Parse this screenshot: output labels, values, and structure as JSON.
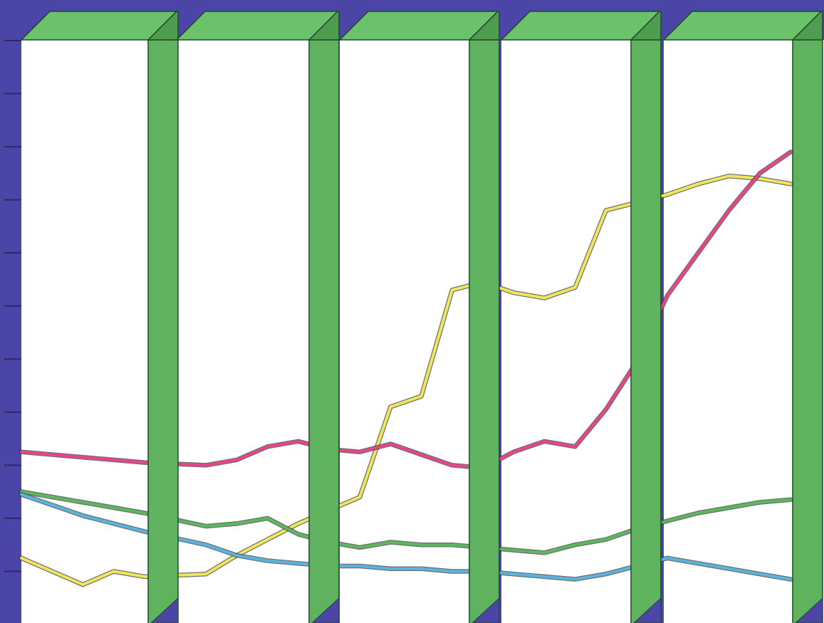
{
  "colors": {
    "background": "#4a45a6",
    "pillar_face": "#5fb35f",
    "pillar_top": "#6cc26a",
    "pillar_side": "#4f9d50",
    "pillar_edge": "#1e4a2a",
    "panel": "#ffffff",
    "tick": "#2b2a66"
  },
  "chart_data": {
    "type": "line",
    "title": "",
    "xlabel": "",
    "ylabel": "",
    "tick_labels": [],
    "x_range": [
      0,
      25
    ],
    "ylim": [
      0,
      11
    ],
    "y_ticks": [
      0,
      1,
      2,
      3,
      4,
      5,
      6,
      7,
      8,
      9,
      10,
      11
    ],
    "grid": false,
    "legend": "none",
    "x": [
      0,
      2,
      3,
      4,
      6,
      7,
      8,
      9,
      10,
      11,
      12,
      13,
      14,
      15,
      16,
      17,
      18,
      19,
      20,
      21,
      22,
      23,
      24,
      25
    ],
    "series": [
      {
        "color": "#f0e85a",
        "values": [
          1.25,
          0.75,
          1.0,
          0.9,
          0.95,
          1.3,
          1.6,
          1.9,
          2.15,
          2.4,
          4.1,
          4.3,
          6.3,
          6.45,
          6.25,
          6.15,
          6.35,
          7.8,
          7.95,
          8.1,
          8.3,
          8.45,
          8.4,
          8.3
        ]
      },
      {
        "color": "#e8448a",
        "values": [
          3.25,
          3.15,
          3.1,
          3.05,
          3.0,
          3.1,
          3.35,
          3.45,
          3.3,
          3.25,
          3.4,
          3.2,
          3.0,
          2.95,
          3.25,
          3.45,
          3.35,
          4.05,
          4.95,
          6.2,
          7.0,
          7.8,
          8.5,
          8.9
        ]
      },
      {
        "color": "#5bb85c",
        "values": [
          2.5,
          2.3,
          2.2,
          2.1,
          1.85,
          1.9,
          2.0,
          1.7,
          1.55,
          1.45,
          1.55,
          1.5,
          1.5,
          1.45,
          1.4,
          1.35,
          1.5,
          1.6,
          1.8,
          1.95,
          2.1,
          2.2,
          2.3,
          2.35
        ]
      },
      {
        "color": "#5ab4e2",
        "values": [
          2.45,
          2.05,
          1.9,
          1.75,
          1.5,
          1.3,
          1.2,
          1.15,
          1.1,
          1.1,
          1.05,
          1.05,
          1.0,
          1.0,
          0.95,
          0.9,
          0.85,
          0.95,
          1.1,
          1.25,
          1.15,
          1.05,
          0.95,
          0.85
        ]
      }
    ]
  }
}
